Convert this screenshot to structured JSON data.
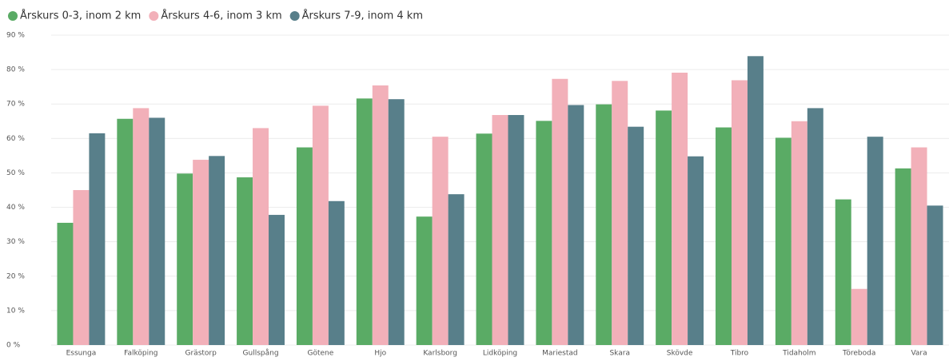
{
  "chart_data": {
    "type": "bar",
    "categories": [
      "Essunga",
      "Falköping",
      "Grästorp",
      "Gullspång",
      "Götene",
      "Hjo",
      "Karlsborg",
      "Lidköping",
      "Mariestad",
      "Skara",
      "Skövde",
      "Tibro",
      "Tidaholm",
      "Töreboda",
      "Vara"
    ],
    "series": [
      {
        "name": "Årskurs 0-3, inom 2 km",
        "color": "#5aab65",
        "values": [
          35.5,
          65.7,
          49.8,
          48.7,
          57.4,
          71.6,
          37.3,
          61.4,
          65.1,
          69.9,
          68.1,
          63.2,
          60.2,
          42.3,
          51.3
        ]
      },
      {
        "name": "Årskurs 4-6, inom 3 km",
        "color": "#f2b0b9",
        "values": [
          45,
          68.8,
          53.8,
          63,
          69.5,
          75.4,
          60.5,
          66.8,
          77.3,
          76.7,
          79.1,
          76.9,
          65,
          16.3,
          57.4
        ]
      },
      {
        "name": "Årskurs 7-9, inom 4 km",
        "color": "#587f8a",
        "values": [
          61.5,
          66,
          54.9,
          37.8,
          41.8,
          71.4,
          43.8,
          66.8,
          69.7,
          63.4,
          54.8,
          83.9,
          68.8,
          60.5,
          40.5
        ]
      }
    ],
    "ylim": [
      0,
      90
    ],
    "yticks": [
      {
        "value": 0,
        "label": "0 %"
      },
      {
        "value": 10,
        "label": "10 %"
      },
      {
        "value": 20,
        "label": "20 %"
      },
      {
        "value": 30,
        "label": "30 %"
      },
      {
        "value": 40,
        "label": "40 %"
      },
      {
        "value": 50,
        "label": "50 %"
      },
      {
        "value": 60,
        "label": "60 %"
      },
      {
        "value": 70,
        "label": "70 %"
      },
      {
        "value": 80,
        "label": "80 %"
      },
      {
        "value": 90,
        "label": "90 %"
      }
    ],
    "grid": true,
    "legend": "top-left"
  }
}
